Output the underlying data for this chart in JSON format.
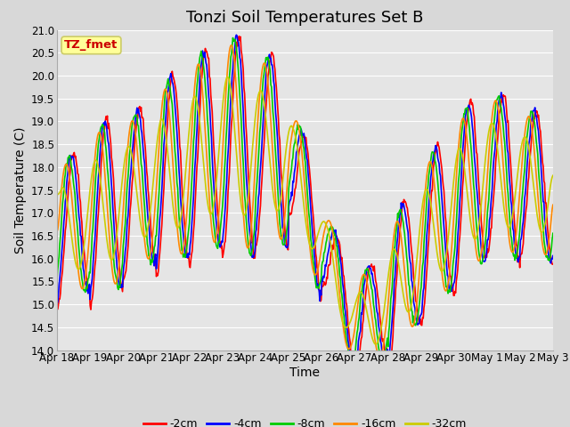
{
  "title": "Tonzi Soil Temperatures Set B",
  "xlabel": "Time",
  "ylabel": "Soil Temperature (C)",
  "ylim": [
    14.0,
    21.0
  ],
  "yticks": [
    14.0,
    14.5,
    15.0,
    15.5,
    16.0,
    16.5,
    17.0,
    17.5,
    18.0,
    18.5,
    19.0,
    19.5,
    20.0,
    20.5,
    21.0
  ],
  "background_color": "#e8e8e8",
  "plot_bg_color": "#e5e5e5",
  "grid_color": "#ffffff",
  "legend_label": "TZ_fmet",
  "legend_box_color": "#ffff99",
  "legend_box_edge": "#cccc66",
  "legend_text_color": "#cc0000",
  "series_labels": [
    "-2cm",
    "-4cm",
    "-8cm",
    "-16cm",
    "-32cm"
  ],
  "series_colors": [
    "#ff0000",
    "#0000ff",
    "#00cc00",
    "#ff8800",
    "#cccc00"
  ],
  "series_linewidths": [
    1.2,
    1.2,
    1.2,
    1.2,
    1.2
  ],
  "xtick_labels": [
    "Apr 18",
    "Apr 19",
    "Apr 20",
    "Apr 21",
    "Apr 22",
    "Apr 23",
    "Apr 24",
    "Apr 25",
    "Apr 26",
    "Apr 27",
    "Apr 28",
    "Apr 29",
    "Apr 30",
    "May 1",
    "May 2",
    "May 3"
  ],
  "title_fontsize": 13,
  "axis_fontsize": 10,
  "tick_fontsize": 8.5
}
